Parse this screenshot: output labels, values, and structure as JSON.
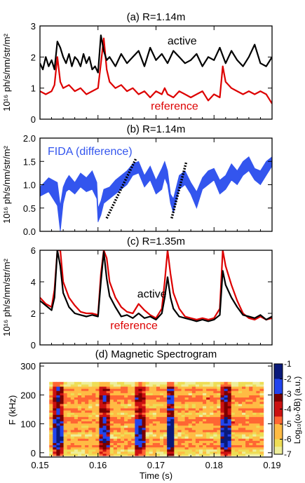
{
  "x_ticks": [
    "0.15",
    "0.16",
    "0.17",
    "0.18",
    "0.19"
  ],
  "x_range": [
    0.15,
    0.19
  ],
  "xlabel": "Time (s)",
  "chart_data": [
    {
      "type": "line",
      "title": "(a) R=1.14m",
      "ylabel": "10¹⁶ ph/s/nm/str/m²",
      "ylim": [
        0,
        3
      ],
      "y_ticks": [
        "0",
        "1",
        "2",
        "3"
      ],
      "series": [
        {
          "name": "active",
          "color": "#000000",
          "x": [
            0.15,
            0.1505,
            0.151,
            0.1515,
            0.152,
            0.1525,
            0.153,
            0.1535,
            0.154,
            0.1545,
            0.155,
            0.1555,
            0.156,
            0.1565,
            0.157,
            0.1575,
            0.158,
            0.1585,
            0.159,
            0.1595,
            0.16,
            0.1605,
            0.161,
            0.1615,
            0.162,
            0.163,
            0.164,
            0.165,
            0.166,
            0.167,
            0.168,
            0.169,
            0.17,
            0.171,
            0.172,
            0.173,
            0.174,
            0.175,
            0.176,
            0.177,
            0.178,
            0.179,
            0.18,
            0.181,
            0.182,
            0.183,
            0.184,
            0.185,
            0.186,
            0.187,
            0.188,
            0.189,
            0.19
          ],
          "y": [
            1.8,
            1.6,
            2.0,
            1.7,
            1.9,
            1.6,
            2.5,
            2.3,
            2.0,
            1.8,
            2.1,
            1.7,
            2.0,
            1.9,
            1.7,
            2.1,
            1.8,
            2.0,
            1.6,
            1.7,
            1.5,
            2.7,
            2.2,
            1.9,
            2.0,
            1.7,
            2.1,
            1.8,
            2.0,
            2.2,
            1.7,
            2.3,
            1.9,
            2.1,
            1.8,
            2.2,
            2.0,
            1.8,
            1.9,
            2.1,
            1.7,
            2.0,
            1.9,
            2.3,
            1.8,
            2.2,
            1.9,
            1.7,
            2.0,
            2.4,
            1.8,
            1.7,
            2.0
          ]
        },
        {
          "name": "reference",
          "color": "#dd0000",
          "x": [
            0.15,
            0.151,
            0.152,
            0.1525,
            0.153,
            0.1535,
            0.154,
            0.155,
            0.156,
            0.157,
            0.158,
            0.159,
            0.16,
            0.1605,
            0.161,
            0.1615,
            0.162,
            0.163,
            0.164,
            0.165,
            0.166,
            0.167,
            0.168,
            0.169,
            0.17,
            0.171,
            0.1715,
            0.172,
            0.173,
            0.174,
            0.175,
            0.176,
            0.177,
            0.178,
            0.179,
            0.18,
            0.181,
            0.1815,
            0.182,
            0.183,
            0.184,
            0.185,
            0.186,
            0.187,
            0.188,
            0.189,
            0.19
          ],
          "y": [
            0.9,
            0.8,
            0.9,
            1.1,
            2.0,
            1.2,
            1.0,
            1.1,
            0.9,
            1.0,
            0.8,
            0.9,
            1.0,
            1.8,
            2.6,
            1.6,
            1.2,
            1.0,
            1.1,
            0.9,
            1.0,
            0.8,
            0.9,
            0.7,
            0.9,
            0.8,
            1.0,
            0.8,
            0.7,
            0.9,
            0.8,
            0.7,
            0.8,
            0.9,
            0.6,
            0.8,
            0.7,
            1.7,
            1.2,
            1.0,
            0.9,
            0.8,
            0.9,
            0.8,
            0.9,
            0.8,
            0.5
          ]
        }
      ],
      "annotations": [
        {
          "text": "active",
          "x": 0.1745,
          "y": 2.4,
          "color": "#000000"
        },
        {
          "text": "reference",
          "x": 0.1732,
          "y": 0.3,
          "color": "#dd0000"
        }
      ]
    },
    {
      "type": "area",
      "title": "(b) R=1.14m",
      "ylabel": "10¹⁶ ph/s/nm/str/m²",
      "ylim": [
        0,
        2
      ],
      "y_ticks": [
        "0.0",
        "0.5",
        "1.0",
        "1.5",
        "2.0"
      ],
      "series": [
        {
          "name": "FIDA (difference)",
          "color": "#3355ee",
          "x": [
            0.15,
            0.1515,
            0.153,
            0.1535,
            0.154,
            0.1545,
            0.155,
            0.156,
            0.157,
            0.158,
            0.159,
            0.1598,
            0.16,
            0.1605,
            0.161,
            0.162,
            0.163,
            0.164,
            0.165,
            0.166,
            0.167,
            0.168,
            0.169,
            0.17,
            0.171,
            0.1715,
            0.172,
            0.1725,
            0.173,
            0.174,
            0.175,
            0.176,
            0.177,
            0.178,
            0.179,
            0.18,
            0.181,
            0.182,
            0.183,
            0.184,
            0.185,
            0.186,
            0.187,
            0.188,
            0.189,
            0.19
          ],
          "lower": [
            0.75,
            0.85,
            0.55,
            0.0,
            0.6,
            0.85,
            0.9,
            0.8,
            0.95,
            0.85,
            0.9,
            0.7,
            0.2,
            0.35,
            0.6,
            0.7,
            0.8,
            0.9,
            1.0,
            1.2,
            1.25,
            0.95,
            1.1,
            0.8,
            0.9,
            1.15,
            1.0,
            0.6,
            0.4,
            0.9,
            1.0,
            0.8,
            0.5,
            0.9,
            1.0,
            1.1,
            0.8,
            0.9,
            1.1,
            1.0,
            1.2,
            1.3,
            1.1,
            1.0,
            1.2,
            1.4
          ],
          "upper": [
            0.95,
            1.15,
            1.05,
            0.55,
            0.95,
            1.1,
            1.2,
            1.05,
            1.25,
            1.15,
            1.3,
            1.05,
            0.5,
            0.65,
            0.9,
            0.95,
            1.1,
            1.2,
            1.3,
            1.45,
            1.5,
            1.2,
            1.4,
            1.1,
            1.35,
            1.5,
            1.3,
            0.8,
            0.7,
            1.2,
            1.3,
            1.05,
            0.85,
            1.15,
            1.3,
            1.35,
            1.1,
            1.2,
            1.45,
            1.3,
            1.5,
            1.6,
            1.35,
            1.3,
            1.5,
            1.6
          ]
        }
      ],
      "trend_lines": [
        {
          "x": [
            0.1615,
            0.1665
          ],
          "y": [
            0.28,
            1.55
          ]
        },
        {
          "x": [
            0.1727,
            0.1752
          ],
          "y": [
            0.28,
            1.48
          ]
        }
      ],
      "legend_text": "FIDA (difference)"
    },
    {
      "type": "line",
      "title": "(c) R=1.35m",
      "ylabel": "10¹⁶ ph/s/nm/str/m²",
      "ylim": [
        0,
        6
      ],
      "y_ticks": [
        "0",
        "2",
        "4",
        "6"
      ],
      "series": [
        {
          "name": "active",
          "color": "#000000",
          "x": [
            0.15,
            0.151,
            0.152,
            0.1525,
            0.153,
            0.1535,
            0.154,
            0.155,
            0.156,
            0.157,
            0.158,
            0.159,
            0.16,
            0.1605,
            0.161,
            0.1615,
            0.162,
            0.163,
            0.164,
            0.165,
            0.166,
            0.167,
            0.168,
            0.169,
            0.17,
            0.171,
            0.1715,
            0.172,
            0.1725,
            0.173,
            0.174,
            0.175,
            0.176,
            0.177,
            0.178,
            0.179,
            0.18,
            0.181,
            0.1815,
            0.182,
            0.183,
            0.184,
            0.185,
            0.186,
            0.187,
            0.188,
            0.189,
            0.19
          ],
          "y": [
            2.8,
            2.5,
            2.2,
            3.0,
            6.0,
            5.0,
            3.3,
            2.4,
            2.0,
            1.9,
            1.8,
            1.9,
            1.8,
            4.0,
            5.9,
            4.2,
            3.1,
            2.4,
            1.8,
            1.9,
            1.7,
            2.0,
            1.7,
            1.8,
            1.6,
            2.0,
            3.0,
            4.3,
            3.0,
            2.3,
            1.8,
            1.7,
            1.6,
            1.5,
            1.6,
            1.5,
            1.6,
            1.9,
            4.7,
            3.8,
            3.0,
            2.4,
            1.9,
            1.8,
            1.7,
            1.9,
            1.6,
            1.8
          ]
        },
        {
          "name": "reference",
          "color": "#dd0000",
          "x": [
            0.15,
            0.151,
            0.152,
            0.1525,
            0.153,
            0.1535,
            0.154,
            0.155,
            0.156,
            0.157,
            0.158,
            0.159,
            0.16,
            0.1605,
            0.161,
            0.1615,
            0.162,
            0.163,
            0.164,
            0.165,
            0.166,
            0.167,
            0.168,
            0.169,
            0.17,
            0.171,
            0.1715,
            0.172,
            0.1725,
            0.173,
            0.174,
            0.175,
            0.176,
            0.177,
            0.178,
            0.179,
            0.18,
            0.181,
            0.1815,
            0.182,
            0.183,
            0.184,
            0.185,
            0.186,
            0.187,
            0.188,
            0.189,
            0.19
          ],
          "y": [
            3.0,
            2.6,
            2.4,
            3.5,
            6.0,
            6.0,
            4.0,
            3.0,
            2.5,
            2.1,
            2.0,
            2.0,
            1.9,
            4.5,
            6.0,
            5.5,
            4.0,
            3.0,
            2.4,
            2.1,
            2.0,
            2.6,
            2.2,
            1.9,
            1.7,
            2.3,
            4.0,
            6.0,
            4.5,
            3.3,
            2.3,
            1.8,
            1.7,
            1.6,
            1.7,
            1.6,
            1.7,
            2.3,
            6.0,
            5.0,
            3.8,
            2.8,
            2.0,
            1.7,
            1.6,
            1.8,
            1.6,
            1.7
          ]
        }
      ],
      "annotations": [
        {
          "text": "active",
          "x": 0.1693,
          "y": 3.0,
          "color": "#000000"
        },
        {
          "text": "reference",
          "x": 0.1662,
          "y": 1.0,
          "color": "#dd0000"
        }
      ]
    },
    {
      "type": "heatmap",
      "title": "(d) Magnetic Spectrogram",
      "ylabel": "F (kHz)",
      "ylim": [
        -15,
        310
      ],
      "y_ticks": [
        "0",
        "100",
        "200",
        "300"
      ],
      "colorbar": {
        "label": "Log₁₀(ω·δB) (a.u.)",
        "ticks": [
          "-1",
          "-2",
          "-3",
          "-4",
          "-5",
          "-6",
          "-7"
        ],
        "colors": [
          "#0a1a7a",
          "#2244ee",
          "#7a0000",
          "#cc1111",
          "#ff6633",
          "#ffbb44",
          "#eedd55",
          "#eeee99",
          "#ffffff"
        ]
      },
      "activity_columns": [
        {
          "t": 0.1529,
          "intensity": 0.9
        },
        {
          "t": 0.1608,
          "intensity": 0.7
        },
        {
          "t": 0.1668,
          "intensity": 0.75
        },
        {
          "t": 0.1722,
          "intensity": 1.0
        },
        {
          "t": 0.1818,
          "intensity": 0.9
        }
      ],
      "bands_khz": [
        20,
        40,
        75,
        100,
        115,
        145,
        175,
        190,
        215
      ]
    }
  ]
}
